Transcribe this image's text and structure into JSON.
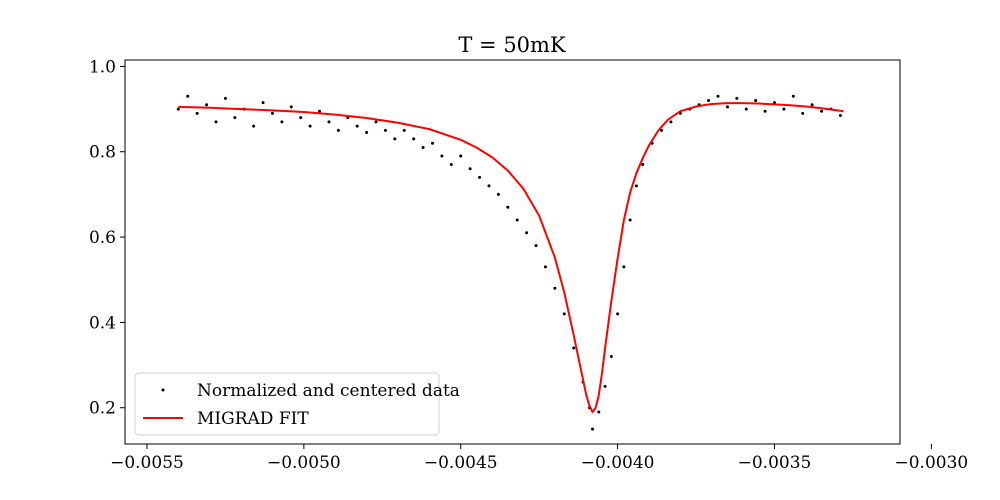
{
  "chart_data": {
    "type": "scatter",
    "title": "T = 50mK",
    "xlabel": "",
    "ylabel": "",
    "xlim": [
      -0.00557,
      -0.0031
    ],
    "ylim": [
      0.115,
      1.015
    ],
    "x_ticks": [
      -0.0055,
      -0.005,
      -0.0045,
      -0.004,
      -0.0035,
      -0.003
    ],
    "x_tick_labels": [
      "−0.0055",
      "−0.0050",
      "−0.0045",
      "−0.0040",
      "−0.0035",
      "−0.0030"
    ],
    "y_ticks": [
      0.2,
      0.4,
      0.6,
      0.8,
      1.0
    ],
    "y_tick_labels": [
      "0.2",
      "0.4",
      "0.6",
      "0.8",
      "1.0"
    ],
    "grid": false,
    "legend_position": "lower-left",
    "series": [
      {
        "name": "Normalized and centered data",
        "kind": "scatter",
        "color": "#000000",
        "x": [
          -0.0054,
          -0.00537,
          -0.00534,
          -0.00531,
          -0.00528,
          -0.00525,
          -0.00522,
          -0.00519,
          -0.00516,
          -0.00513,
          -0.0051,
          -0.00507,
          -0.00504,
          -0.00501,
          -0.00498,
          -0.00495,
          -0.00492,
          -0.00489,
          -0.00486,
          -0.00483,
          -0.0048,
          -0.00477,
          -0.00474,
          -0.00471,
          -0.00468,
          -0.00465,
          -0.00462,
          -0.00459,
          -0.00456,
          -0.00453,
          -0.0045,
          -0.00447,
          -0.00444,
          -0.00441,
          -0.00438,
          -0.00435,
          -0.00432,
          -0.00429,
          -0.00426,
          -0.00423,
          -0.0042,
          -0.00417,
          -0.00414,
          -0.00411,
          -0.00409,
          -0.00408,
          -0.00406,
          -0.00404,
          -0.00402,
          -0.004,
          -0.00398,
          -0.00396,
          -0.00394,
          -0.00392,
          -0.00389,
          -0.00386,
          -0.00383,
          -0.0038,
          -0.00377,
          -0.00374,
          -0.00371,
          -0.00368,
          -0.00365,
          -0.00362,
          -0.00359,
          -0.00356,
          -0.00353,
          -0.0035,
          -0.00347,
          -0.00344,
          -0.00341,
          -0.00338,
          -0.00335,
          -0.00332,
          -0.00329
        ],
        "y": [
          0.9,
          0.93,
          0.89,
          0.91,
          0.87,
          0.925,
          0.88,
          0.9,
          0.86,
          0.915,
          0.89,
          0.87,
          0.905,
          0.88,
          0.86,
          0.895,
          0.87,
          0.85,
          0.88,
          0.86,
          0.845,
          0.87,
          0.85,
          0.83,
          0.85,
          0.83,
          0.81,
          0.82,
          0.79,
          0.77,
          0.79,
          0.76,
          0.74,
          0.72,
          0.7,
          0.67,
          0.64,
          0.61,
          0.58,
          0.53,
          0.48,
          0.42,
          0.34,
          0.26,
          0.2,
          0.15,
          0.19,
          0.25,
          0.32,
          0.42,
          0.53,
          0.64,
          0.72,
          0.77,
          0.82,
          0.85,
          0.87,
          0.89,
          0.9,
          0.91,
          0.92,
          0.93,
          0.905,
          0.925,
          0.9,
          0.92,
          0.895,
          0.915,
          0.9,
          0.93,
          0.89,
          0.91,
          0.895,
          0.9,
          0.885
        ]
      },
      {
        "name": "MIGRAD FIT",
        "kind": "line",
        "color": "#ff0000",
        "x": [
          -0.0054,
          -0.0053,
          -0.0052,
          -0.0051,
          -0.005,
          -0.0049,
          -0.0048,
          -0.0047,
          -0.0046,
          -0.0045,
          -0.00445,
          -0.0044,
          -0.00435,
          -0.0043,
          -0.00425,
          -0.0042,
          -0.00417,
          -0.00414,
          -0.00412,
          -0.0041,
          -0.00409,
          -0.00408,
          -0.00407,
          -0.00406,
          -0.00405,
          -0.00404,
          -0.00402,
          -0.004,
          -0.00398,
          -0.00396,
          -0.00394,
          -0.00392,
          -0.0039,
          -0.00387,
          -0.00384,
          -0.0038,
          -0.00375,
          -0.0037,
          -0.00365,
          -0.0036,
          -0.00355,
          -0.0035,
          -0.00345,
          -0.0034,
          -0.00335,
          -0.0033,
          -0.00328
        ],
        "y": [
          0.905,
          0.903,
          0.9,
          0.897,
          0.893,
          0.887,
          0.879,
          0.868,
          0.853,
          0.828,
          0.81,
          0.787,
          0.756,
          0.713,
          0.65,
          0.552,
          0.47,
          0.37,
          0.3,
          0.23,
          0.205,
          0.19,
          0.2,
          0.23,
          0.28,
          0.34,
          0.45,
          0.55,
          0.64,
          0.705,
          0.75,
          0.785,
          0.815,
          0.85,
          0.875,
          0.895,
          0.906,
          0.912,
          0.914,
          0.914,
          0.913,
          0.911,
          0.909,
          0.906,
          0.902,
          0.897,
          0.895
        ]
      }
    ]
  }
}
